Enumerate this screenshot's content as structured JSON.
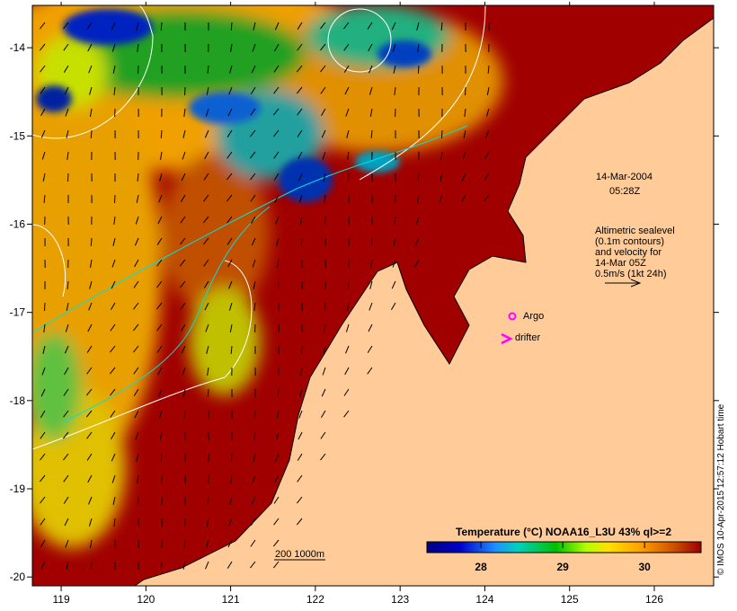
{
  "map": {
    "x_axis": {
      "ticks": [
        "119",
        "120",
        "121",
        "122",
        "123",
        "124",
        "125",
        "126"
      ],
      "values": [
        119,
        120,
        121,
        122,
        123,
        124,
        125,
        126
      ],
      "range": [
        118.66,
        126.7
      ]
    },
    "y_axis": {
      "ticks": [
        "-14",
        "-15",
        "-16",
        "-17",
        "-18",
        "-19",
        "-20"
      ],
      "values": [
        -14,
        -15,
        -16,
        -17,
        -18,
        -19,
        -20
      ],
      "range": [
        -20.1,
        -13.52
      ]
    },
    "date": "14-Mar-2004",
    "time": "05:28Z",
    "velocity_note": [
      "Altimetric sealevel",
      "(0.1m contours)",
      "and velocity for",
      "14-Mar 05Z",
      "0.5m/s (1kt 24h)"
    ],
    "legend": {
      "argo": "Argo",
      "drifter": "drifter"
    },
    "isobaths": "200  1000m",
    "colorbar": {
      "title": "Temperature (°C) NOAA16_L3U 43% ql>=2",
      "ticks": [
        "28",
        "29",
        "30"
      ],
      "tick_values": [
        28,
        29,
        30
      ],
      "range": [
        27.34,
        30.69
      ]
    },
    "credit": "© IMOS 10-Apr-2015 12:57:12 Hobart time",
    "colors": {
      "land": "#FFCC99",
      "warm": "#A00000",
      "argo": "#FF00FF"
    }
  }
}
